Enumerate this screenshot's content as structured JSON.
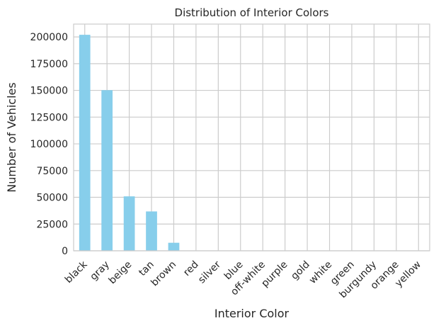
{
  "chart_data": {
    "type": "bar",
    "title": "Distribution of Interior Colors",
    "xlabel": "Interior Color",
    "ylabel": "Number of Vehicles",
    "categories": [
      "black",
      "gray",
      "beige",
      "tan",
      "brown",
      "red",
      "silver",
      "blue",
      "off-white",
      "purple",
      "gold",
      "white",
      "green",
      "burgundy",
      "orange",
      "yellow"
    ],
    "values": [
      202000,
      150200,
      50900,
      36800,
      7500,
      300,
      150,
      100,
      80,
      60,
      50,
      40,
      30,
      20,
      15,
      10
    ],
    "ylim": [
      0,
      212000
    ],
    "yticks": [
      0,
      25000,
      50000,
      75000,
      100000,
      125000,
      150000,
      175000,
      200000
    ],
    "grid": true,
    "bar_color": "#87CEEB",
    "grid_color": "#CCCCCC"
  }
}
